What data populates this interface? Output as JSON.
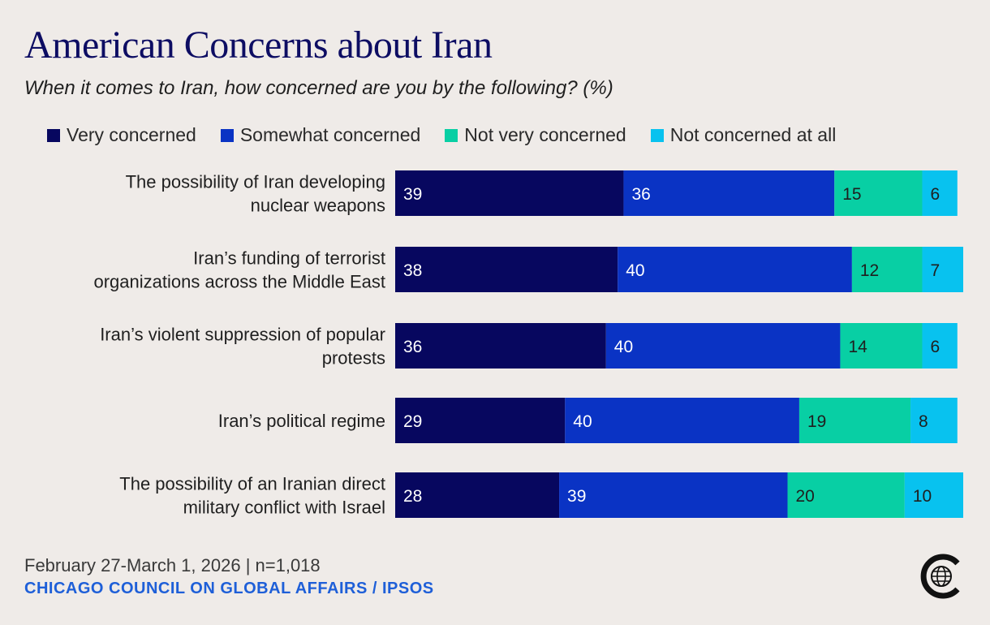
{
  "header": {
    "title": "American Concerns about Iran",
    "subtitle": "When it comes to Iran, how concerned are you by the following? (%)"
  },
  "colors": {
    "very": "#07075f",
    "somewhat": "#0a33c4",
    "notvery": "#08cfa4",
    "notatall": "#08c2ef"
  },
  "chart_data": {
    "type": "bar",
    "orientation": "horizontal",
    "stacked": true,
    "title": "American Concerns about Iran",
    "subtitle": "When it comes to Iran, how concerned are you by the following? (%)",
    "categories": [
      [
        "The possibility of Iran developing",
        "nuclear weapons"
      ],
      [
        "Iran’s funding of terrorist",
        "organizations across the Middle East"
      ],
      [
        "Iran’s violent suppression of popular",
        "protests"
      ],
      [
        "Iran’s political regime"
      ],
      [
        "The possibility of an Iranian direct",
        "military conflict with Israel"
      ]
    ],
    "series": [
      {
        "name": "Very concerned",
        "key": "very",
        "values": [
          39,
          38,
          36,
          29,
          28
        ]
      },
      {
        "name": "Somewhat concerned",
        "key": "somewhat",
        "values": [
          36,
          40,
          40,
          40,
          39
        ]
      },
      {
        "name": "Not very concerned",
        "key": "notvery",
        "values": [
          15,
          12,
          14,
          19,
          20
        ]
      },
      {
        "name": "Not concerned at all",
        "key": "notatall",
        "values": [
          6,
          7,
          6,
          8,
          10
        ]
      }
    ],
    "xlim": [
      0,
      97
    ],
    "legend_position": "top"
  },
  "footer": {
    "date": "February 27-March 1, 2026 | n=1,018",
    "source": "CHICAGO COUNCIL ON GLOBAL AFFAIRS / IPSOS"
  }
}
